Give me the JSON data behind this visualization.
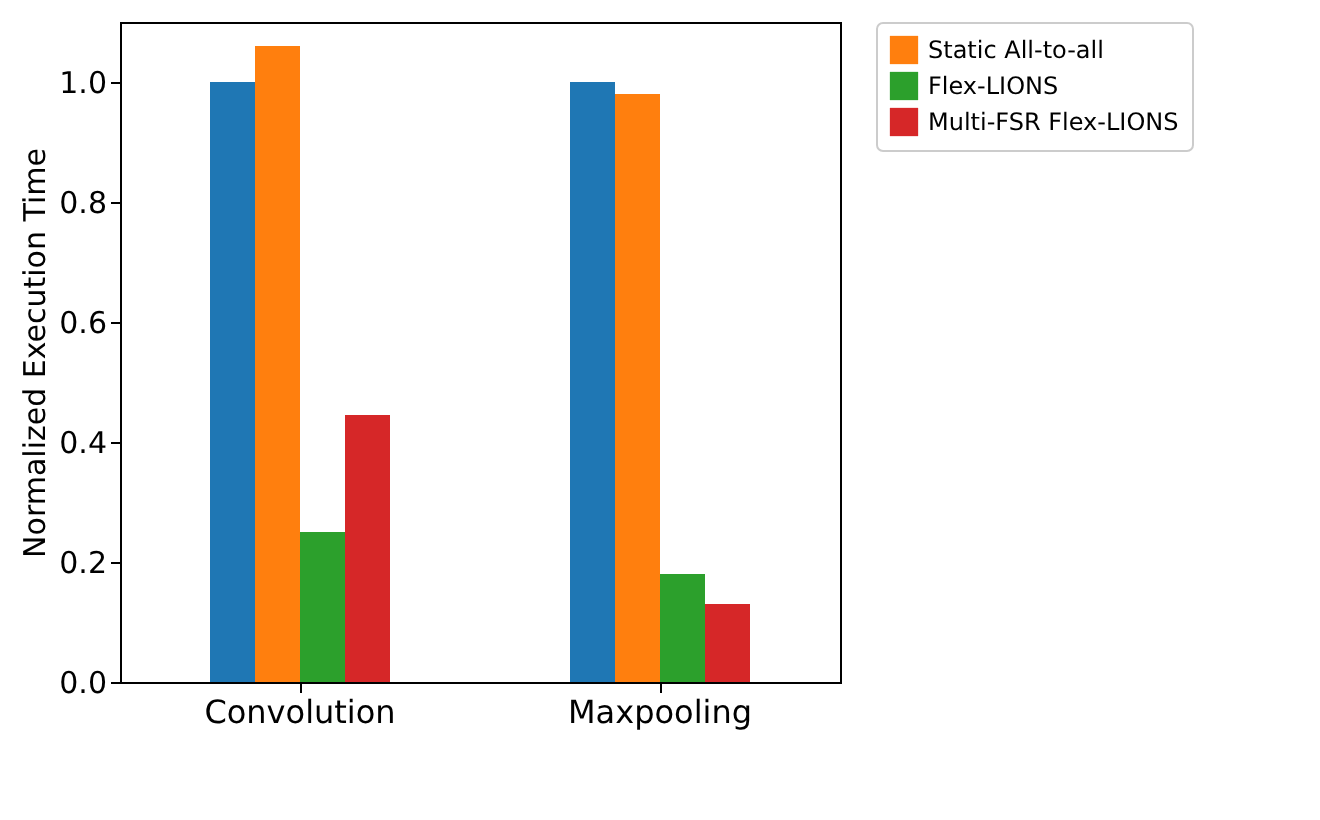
{
  "chart_data": {
    "type": "bar",
    "ylabel": "Normalized Execution Time",
    "categories": [
      "Convolution",
      "Maxpooling"
    ],
    "series": [
      {
        "color": "#1f77b4",
        "values": [
          1.0,
          1.0
        ]
      },
      {
        "name": "Static All-to-all",
        "color": "#ff7f0e",
        "values": [
          1.06,
          0.98
        ]
      },
      {
        "name": "Flex-LIONS",
        "color": "#2ca02c",
        "values": [
          0.25,
          0.18
        ]
      },
      {
        "name": "Multi-FSR Flex-LIONS",
        "color": "#d62728",
        "values": [
          0.445,
          0.13
        ]
      }
    ],
    "ylim": [
      0,
      1.1
    ],
    "yticks": [
      {
        "value": 0,
        "label": "0.0"
      },
      {
        "value": 0.2,
        "label": "0.2"
      },
      {
        "value": 0.4,
        "label": "0.4"
      },
      {
        "value": 0.6,
        "label": "0.6"
      },
      {
        "value": 0.8,
        "label": "0.8"
      },
      {
        "value": 1,
        "label": "1.0"
      }
    ],
    "grid": false,
    "legend": "right"
  }
}
